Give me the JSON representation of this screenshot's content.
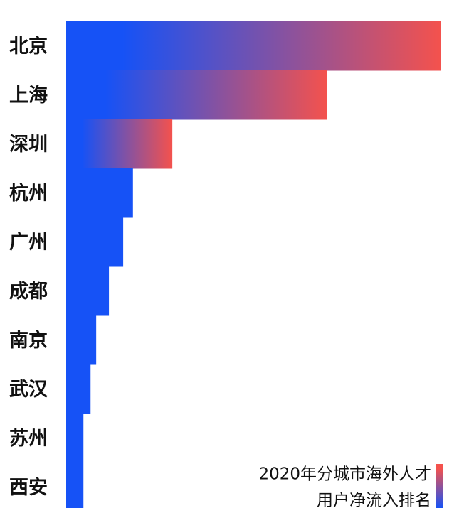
{
  "chart_data": {
    "type": "hbar",
    "title_lines": [
      "2020年分城市海外人才",
      "用户净流入排名"
    ],
    "categories": [
      "北京",
      "上海",
      "深圳",
      "杭州",
      "广州",
      "成都",
      "南京",
      "武汉",
      "苏州",
      "西安"
    ],
    "values": [
      100,
      69.6,
      28.3,
      17.8,
      15.2,
      11.4,
      8.0,
      6.5,
      4.6,
      4.6
    ],
    "bar_colors": [
      [
        "#1652f6",
        "#f4524d"
      ],
      [
        "#1652f6",
        "#f4524d"
      ],
      [
        "#1652f6",
        "#f4524d"
      ],
      [
        "#1652f6",
        "#1652f6"
      ],
      [
        "#1652f6",
        "#1652f6"
      ],
      [
        "#1652f6",
        "#1652f6"
      ],
      [
        "#1652f6",
        "#1652f6"
      ],
      [
        "#1652f6",
        "#1652f6"
      ],
      [
        "#1652f6",
        "#1652f6"
      ],
      [
        "#1652f6",
        "#1652f6"
      ]
    ],
    "legend_colors": [
      "#f4524d",
      "#1652f6"
    ]
  }
}
